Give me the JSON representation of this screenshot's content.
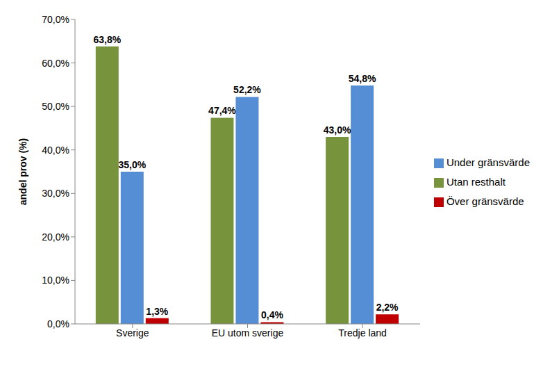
{
  "chart_data": {
    "type": "bar",
    "y_label": "andel prov (%)",
    "categories": [
      "Sverige",
      "EU utom sverige",
      "Tredje land"
    ],
    "series": [
      {
        "name": "Utan resthalt",
        "color": "#77933C",
        "values": [
          63.8,
          47.4,
          43.0
        ],
        "value_labels": [
          "63,8%",
          "47,4%",
          "43,0%"
        ]
      },
      {
        "name": "Under gränsvärde",
        "color": "#558ED5",
        "values": [
          35.0,
          52.2,
          54.8
        ],
        "value_labels": [
          "35,0%",
          "52,2%",
          "54,8%"
        ]
      },
      {
        "name": "Över gränsvärde",
        "color": "#C00000",
        "values": [
          1.3,
          0.4,
          2.2
        ],
        "value_labels": [
          "1,3%",
          "0,4%",
          "2,2%"
        ]
      }
    ],
    "ylim": [
      0,
      70
    ],
    "yticks": [
      {
        "value": 0,
        "label": "0,0%"
      },
      {
        "value": 10,
        "label": "10,0%"
      },
      {
        "value": 20,
        "label": "20,0%"
      },
      {
        "value": 30,
        "label": "30,0%"
      },
      {
        "value": 40,
        "label": "40,0%"
      },
      {
        "value": 50,
        "label": "50,0%"
      },
      {
        "value": 60,
        "label": "60,0%"
      },
      {
        "value": 70,
        "label": "70,0%"
      }
    ],
    "grid": false,
    "data_labels": true,
    "legend": "right"
  }
}
